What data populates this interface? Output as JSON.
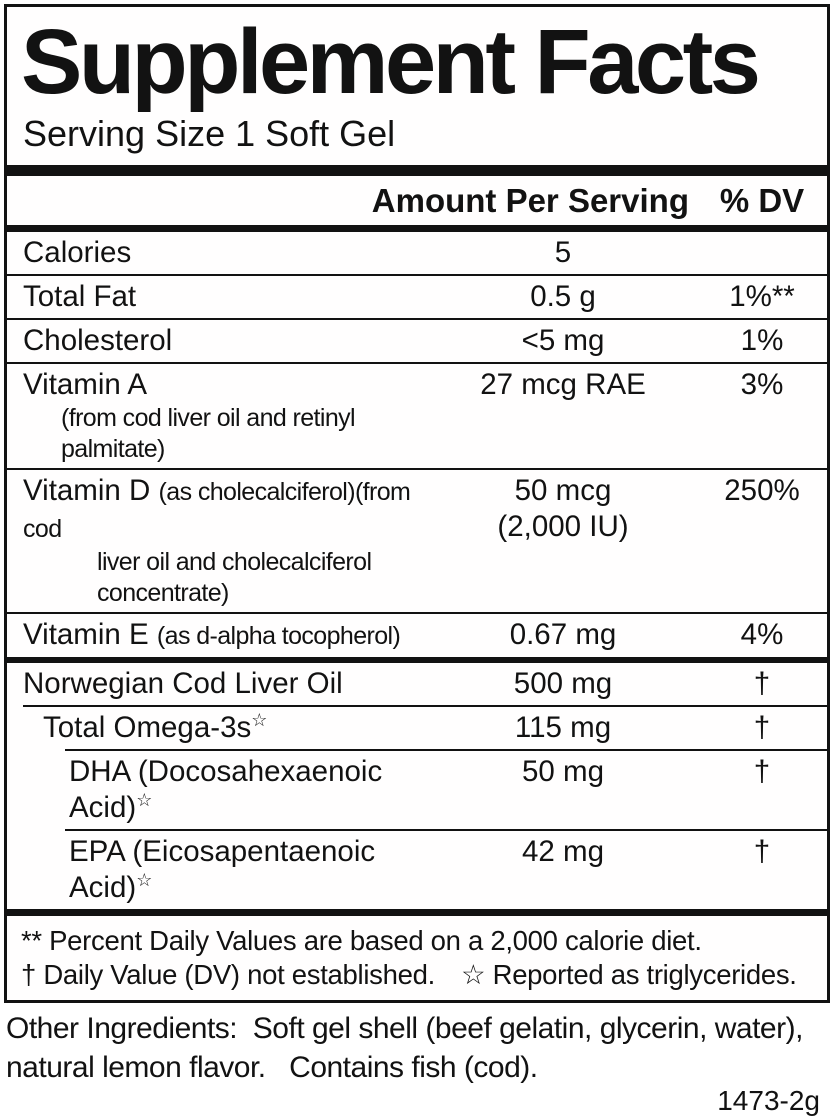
{
  "colors": {
    "ink": "#121212",
    "background": "#ffffff"
  },
  "panel": {
    "title": "Supplement Facts",
    "serving_size": "Serving Size 1 Soft Gel",
    "header": {
      "amount_label": "Amount Per Serving",
      "dv_label": "% DV"
    },
    "rows": [
      {
        "name": "Calories",
        "amount": "5",
        "dv": ""
      },
      {
        "name": "Total Fat",
        "amount": "0.5 g",
        "dv": "1%**"
      },
      {
        "name": "Cholesterol",
        "amount": "<5 mg",
        "dv": "1%"
      },
      {
        "name": "Vitamin A",
        "sub": "(from cod liver oil and retinyl palmitate)",
        "amount": "27 mcg RAE",
        "dv": "3%"
      },
      {
        "name": "Vitamin D",
        "name_detail": "(as cholecalciferol)(from cod",
        "sub": "liver oil and cholecalciferol concentrate)",
        "amount": "50 mcg",
        "amount_sub": "(2,000 IU)",
        "dv": "250%"
      },
      {
        "name": "Vitamin E",
        "name_detail": "(as d-alpha tocopherol)",
        "amount": "0.67 mg",
        "dv": "4%"
      },
      {
        "name": "Norwegian Cod Liver Oil",
        "amount": "500 mg",
        "dv": "†"
      },
      {
        "name": "Total Omega-3s",
        "star": "☆",
        "amount": "115 mg",
        "dv": "†"
      },
      {
        "name": "DHA (Docosahexaenoic Acid)",
        "star": "☆",
        "amount": "50 mg",
        "dv": "†"
      },
      {
        "name": "EPA (Eicosapentaenoic Acid)",
        "star": "☆",
        "amount": "42 mg",
        "dv": "†"
      }
    ],
    "footnotes": {
      "line1": "** Percent Daily Values are based on a 2,000 calorie diet.",
      "line2_part1": "† Daily Value (DV) not established.",
      "line2_part2": "☆ Reported as triglycerides."
    }
  },
  "below_panel": {
    "other_ingredients": "Other Ingredients:  Soft gel shell (beef gelatin, glycerin, water), natural lemon flavor.   Contains fish (cod).",
    "product_code": "1473-2g"
  }
}
